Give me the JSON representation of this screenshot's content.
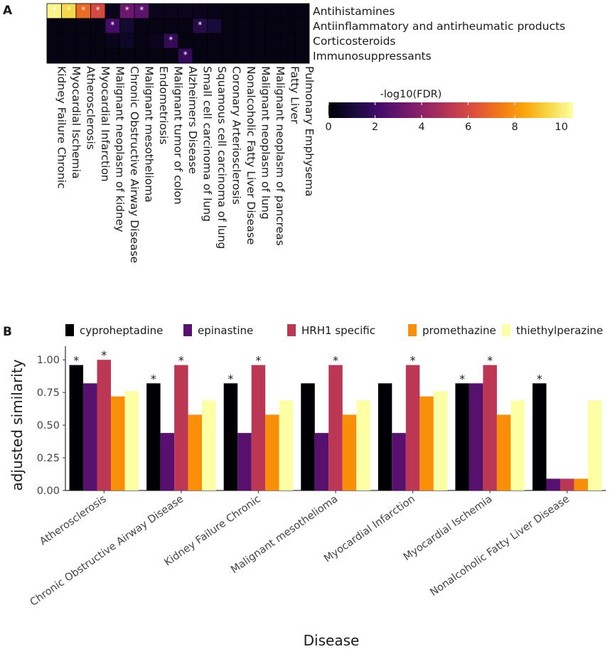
{
  "chart_data": [
    {
      "panel": "A",
      "type": "heatmap",
      "rows": [
        "Antihistamines",
        "Antiinflammatory and antirheumatic products",
        "Corticosteroids",
        "Immunosuppressants"
      ],
      "columns": [
        "Kidney Failure Chronic",
        "Myocardial Ischemia",
        "Atherosclerosis",
        "Myocardial Infarction",
        "Malignant neoplasm of kidney",
        "Chronic Obstructive Airway Disease",
        "Malignant mesothelioma",
        "Endometriosis",
        "Malignant tumor of colon",
        "Alzheimers Disease",
        "Small cell carcinoma of lung",
        "Squamous cell carcinoma of lung",
        "Coronary Arteriosclerosis",
        "Nonalcoholic Fatty Liver Disease",
        "Malignant neoplasm of lung",
        "Malignant neoplasm of pancreas",
        "Fatty Liver",
        "Pulmonary Emphysema"
      ],
      "values": [
        [
          10.2,
          9.5,
          7.0,
          6.0,
          0.5,
          3.2,
          2.8,
          0.5,
          0.5,
          0.5,
          0.5,
          0.4,
          0.3,
          0.3,
          0.3,
          0.3,
          0.3,
          0.3
        ],
        [
          0.3,
          0.3,
          0.3,
          0.3,
          2.2,
          0.9,
          0.3,
          0.3,
          0.3,
          0.3,
          1.4,
          1.1,
          0.3,
          0.3,
          0.3,
          0.3,
          0.3,
          0.3
        ],
        [
          0.3,
          0.3,
          0.3,
          0.3,
          0.5,
          0.7,
          0.3,
          0.5,
          1.8,
          0.3,
          0.3,
          0.3,
          0.3,
          0.3,
          0.3,
          0.3,
          0.3,
          0.3
        ],
        [
          0.3,
          0.3,
          0.3,
          0.3,
          0.3,
          0.3,
          0.3,
          0.3,
          0.3,
          1.8,
          0.3,
          0.3,
          0.3,
          0.3,
          0.3,
          0.3,
          0.3,
          0.3
        ]
      ],
      "significant": [
        [
          1,
          1,
          1,
          1,
          0,
          1,
          1,
          0,
          0,
          0,
          0,
          0,
          0,
          0,
          0,
          0,
          0,
          0
        ],
        [
          0,
          0,
          0,
          0,
          1,
          0,
          0,
          0,
          0,
          0,
          1,
          0,
          0,
          0,
          0,
          0,
          0,
          0
        ],
        [
          0,
          0,
          0,
          0,
          0,
          0,
          0,
          0,
          1,
          0,
          0,
          0,
          0,
          0,
          0,
          0,
          0,
          0
        ],
        [
          0,
          0,
          0,
          0,
          0,
          0,
          0,
          0,
          0,
          1,
          0,
          0,
          0,
          0,
          0,
          0,
          0,
          0
        ]
      ],
      "colorbar": {
        "title": "-log10(FDR)",
        "ticks": [
          "0",
          "2",
          "4",
          "6",
          "8",
          "10"
        ],
        "range": [
          0,
          10.5
        ]
      }
    },
    {
      "panel": "B",
      "type": "bar",
      "xlabel": "Disease",
      "ylabel": "adjusted similarity",
      "ylim": [
        0,
        1.05
      ],
      "yticks": [
        "0.00",
        "0.25",
        "0.50",
        "0.75",
        "1.00"
      ],
      "categories": [
        "Atherosclerosis",
        "Chronic Obstructive Airway Disease",
        "Kidney Failure Chronic",
        "Malignant mesothelioma",
        "Myocardial Infarction",
        "Myocardial Ischemia",
        "Nonalcoholic Fatty Liver Disease"
      ],
      "series": [
        {
          "name": "cyproheptadine",
          "color": "#000004",
          "values": [
            0.96,
            0.82,
            0.82,
            0.82,
            0.82,
            0.82,
            0.82
          ],
          "significant": [
            1,
            1,
            1,
            0,
            0,
            1,
            1
          ]
        },
        {
          "name": "epinastine",
          "color": "#57106e",
          "values": [
            0.82,
            0.44,
            0.44,
            0.44,
            0.44,
            0.82,
            0.09
          ],
          "significant": [
            0,
            0,
            0,
            0,
            0,
            0,
            0
          ]
        },
        {
          "name": "HRH1 specific",
          "color": "#bc3754",
          "values": [
            1.0,
            0.96,
            0.96,
            0.96,
            0.96,
            0.96,
            0.09
          ],
          "significant": [
            1,
            1,
            1,
            1,
            1,
            1,
            0
          ]
        },
        {
          "name": "promethazine",
          "color": "#f98e09",
          "values": [
            0.72,
            0.58,
            0.58,
            0.58,
            0.72,
            0.58,
            0.09
          ],
          "significant": [
            0,
            0,
            0,
            0,
            0,
            0,
            0
          ]
        },
        {
          "name": "thiethylperazine",
          "color": "#fcffa4",
          "values": [
            0.76,
            0.69,
            0.69,
            0.69,
            0.76,
            0.69,
            0.69
          ],
          "significant": [
            0,
            0,
            0,
            0,
            0,
            0,
            0
          ]
        }
      ]
    }
  ]
}
